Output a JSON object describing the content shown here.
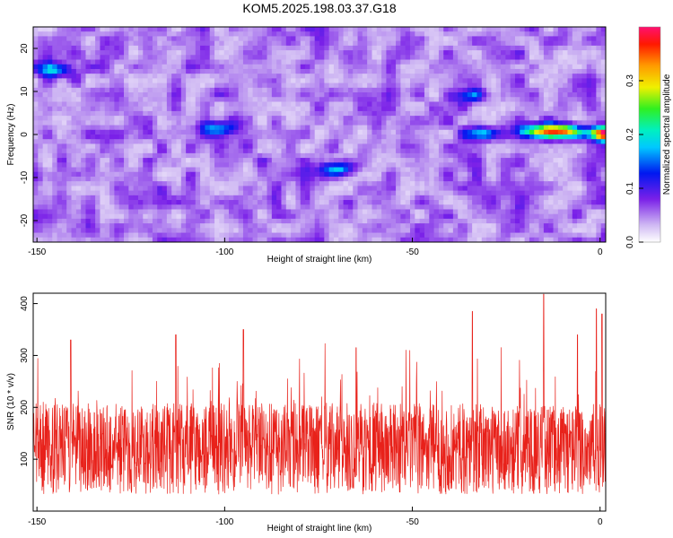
{
  "title": "KOM5.2025.198.03.37.G18",
  "chart_data": [
    {
      "type": "heatmap",
      "xlabel": "Height of straight line (km)",
      "ylabel": "Frequency (Hz)",
      "xlim": [
        -151,
        1.5
      ],
      "ylim": [
        -25,
        25
      ],
      "xticks": [
        -150,
        -100,
        -50,
        0
      ],
      "yticks": [
        -20,
        -10,
        0,
        10,
        20
      ],
      "colorbar": {
        "label": "Normalized spectral amplitude",
        "range": [
          0,
          0.4
        ],
        "ticks": [
          0.0,
          0.1,
          0.2,
          0.3
        ],
        "tick_labels": [
          "0.0",
          "0.1",
          "0.2",
          "0.3"
        ]
      },
      "features": [
        {
          "x": -17,
          "y": 0.7,
          "value": 0.23
        },
        {
          "x": -10,
          "y": 0.7,
          "value": 0.3
        },
        {
          "x": 1,
          "y": 0.2,
          "value": 0.34
        },
        {
          "x": -32,
          "y": 0.2,
          "value": 0.15
        },
        {
          "x": -70,
          "y": -8,
          "value": 0.14
        },
        {
          "x": -145,
          "y": 15,
          "value": 0.13
        },
        {
          "x": -35,
          "y": 9,
          "value": 0.11
        },
        {
          "x": -102,
          "y": 1.5,
          "value": 0.12
        }
      ],
      "background_level": 0.05
    },
    {
      "type": "line",
      "xlabel": "Height of straight line (km)",
      "ylabel": "SNR (10 * v/v)",
      "xlim": [
        -151,
        1.5
      ],
      "ylim": [
        0,
        420
      ],
      "xticks": [
        -150,
        -100,
        -50,
        0
      ],
      "yticks": [
        100,
        200,
        300,
        400
      ],
      "series": [
        {
          "color": "#e8211a",
          "mean": 120,
          "min": 5,
          "max": 420,
          "points": 2000
        }
      ],
      "peaks": [
        {
          "x": -141,
          "y": 330
        },
        {
          "x": -113,
          "y": 340
        },
        {
          "x": -95,
          "y": 350
        },
        {
          "x": -65,
          "y": 315
        },
        {
          "x": -34,
          "y": 385
        },
        {
          "x": -15,
          "y": 418
        },
        {
          "x": -6,
          "y": 340
        },
        {
          "x": -1,
          "y": 390
        },
        {
          "x": 0.5,
          "y": 380
        }
      ]
    }
  ]
}
